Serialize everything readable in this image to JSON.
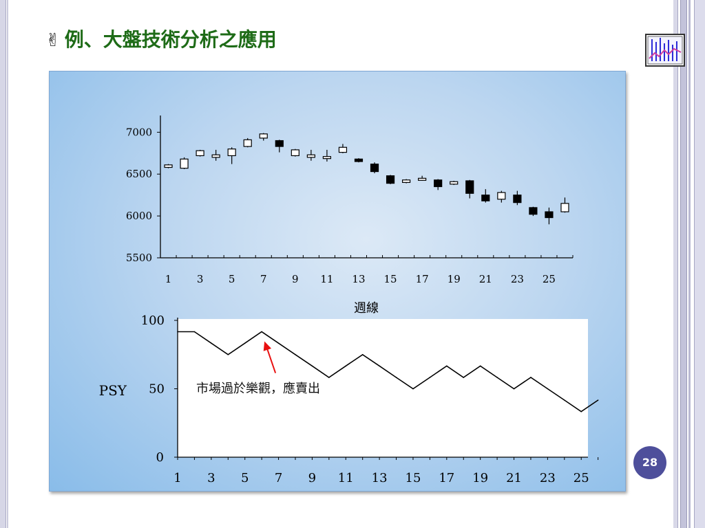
{
  "slide": {
    "title": "例、大盤技術分析之應用",
    "title_icon": "victory-hand-icon",
    "page_number": "28"
  },
  "colors": {
    "title": "#1e6b17",
    "panel_edge": "#89bce9",
    "badge": "#4e4f9b",
    "annotation_arrow": "#e81010"
  },
  "chart_data": [
    {
      "type": "candlestick",
      "xlabel": "週線",
      "ylabel": "",
      "ylim": [
        5500,
        7200
      ],
      "yticks": [
        5500,
        6000,
        6500,
        7000
      ],
      "xtick_labels": [
        "1",
        "3",
        "5",
        "7",
        "9",
        "11",
        "13",
        "15",
        "17",
        "19",
        "21",
        "23",
        "25"
      ],
      "x": [
        1,
        2,
        3,
        4,
        5,
        6,
        7,
        8,
        9,
        10,
        11,
        12,
        13,
        14,
        15,
        16,
        17,
        18,
        19,
        20,
        21,
        22,
        23,
        24,
        25,
        26
      ],
      "open": [
        6580,
        6570,
        6720,
        6700,
        6720,
        6830,
        6930,
        6900,
        6720,
        6700,
        6700,
        6760,
        6680,
        6620,
        6480,
        6400,
        6440,
        6430,
        6380,
        6420,
        6250,
        6200,
        6250,
        6100,
        6050,
        6050
      ],
      "close": [
        6610,
        6680,
        6780,
        6730,
        6800,
        6910,
        6980,
        6830,
        6790,
        6730,
        6710,
        6820,
        6650,
        6530,
        6390,
        6430,
        6450,
        6350,
        6410,
        6270,
        6180,
        6280,
        6160,
        6020,
        5980,
        6150
      ],
      "high": [
        6620,
        6700,
        6790,
        6790,
        6820,
        6930,
        6990,
        6910,
        6800,
        6790,
        6790,
        6860,
        6690,
        6640,
        6490,
        6440,
        6480,
        6440,
        6420,
        6430,
        6320,
        6300,
        6300,
        6110,
        6100,
        6220
      ],
      "low": [
        6570,
        6560,
        6710,
        6660,
        6620,
        6820,
        6900,
        6760,
        6710,
        6660,
        6650,
        6750,
        6640,
        6510,
        6380,
        6390,
        6420,
        6310,
        6370,
        6210,
        6160,
        6160,
        6130,
        6000,
        5900,
        6040
      ]
    },
    {
      "type": "line",
      "ylabel": "PSY",
      "ylim": [
        0,
        100
      ],
      "yticks": [
        0,
        50,
        100
      ],
      "xtick_labels": [
        "1",
        "3",
        "5",
        "7",
        "9",
        "11",
        "13",
        "15",
        "17",
        "19",
        "21",
        "23",
        "25"
      ],
      "x": [
        1,
        2,
        3,
        4,
        5,
        6,
        7,
        8,
        9,
        10,
        11,
        12,
        13,
        14,
        15,
        16,
        17,
        18,
        19,
        20,
        21,
        22,
        23,
        24,
        25,
        26
      ],
      "values": [
        91.7,
        91.7,
        83.3,
        75,
        83.3,
        91.7,
        83.3,
        75,
        66.7,
        58.3,
        66.7,
        75,
        66.7,
        58.3,
        50,
        58.3,
        66.7,
        58.3,
        66.7,
        58.3,
        50,
        58.3,
        50,
        41.7,
        33.3,
        41.7
      ],
      "annotation": {
        "text": "市場過於樂觀，應賣出",
        "points_to_x": 6
      }
    }
  ]
}
